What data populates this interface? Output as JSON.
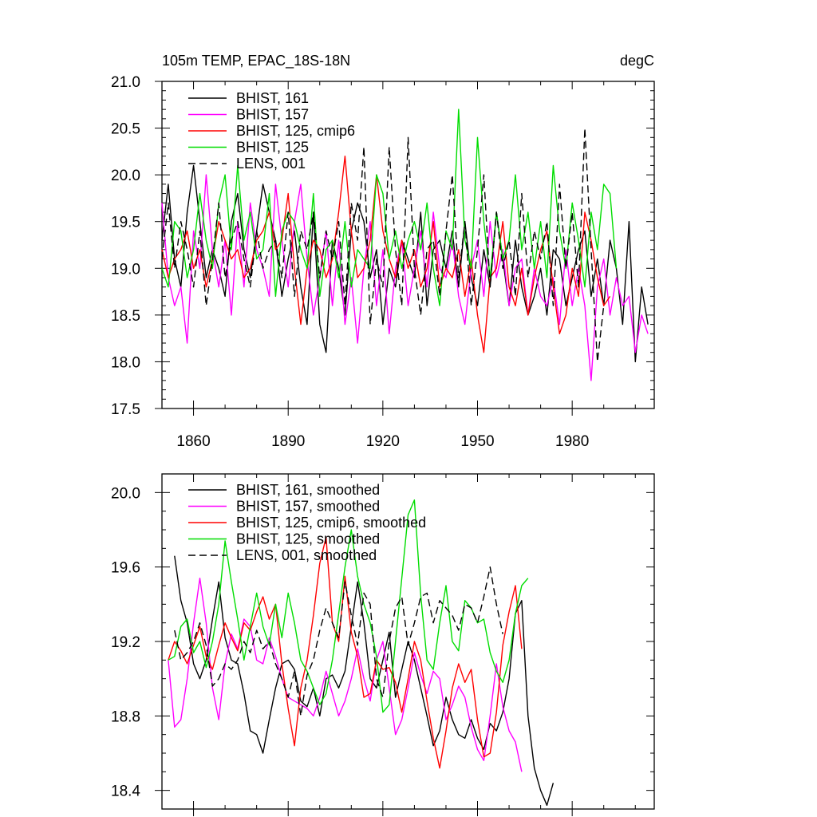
{
  "chart_data": [
    {
      "type": "line",
      "title": "105m TEMP, EPAC_18S-18N",
      "units": "degC",
      "xlabel": "",
      "ylabel": "",
      "xlim": [
        1850,
        2006
      ],
      "ylim": [
        17.5,
        21.0
      ],
      "xticks": [
        1860,
        1890,
        1920,
        1950,
        1980
      ],
      "xtick_labels": [
        "1860",
        "1890",
        "1920",
        "1950",
        "1980"
      ],
      "yticks": [
        17.5,
        18.0,
        18.5,
        19.0,
        19.5,
        20.0,
        20.5,
        21.0
      ],
      "ytick_labels": [
        "17.5",
        "18.0",
        "18.5",
        "19.0",
        "19.5",
        "20.0",
        "20.5",
        "21.0"
      ],
      "legend_position": "top-left",
      "series": [
        {
          "name": "BHIST, 161",
          "color": "#000000",
          "dash": "solid",
          "x_start": 1850,
          "x_step": 2,
          "values": [
            19.3,
            19.9,
            19.1,
            18.8,
            19.6,
            20.1,
            19.5,
            18.9,
            19.2,
            19.0,
            18.7,
            19.5,
            19.8,
            19.2,
            18.9,
            19.4,
            19.9,
            19.6,
            19.3,
            18.7,
            19.1,
            19.4,
            18.8,
            18.4,
            19.6,
            18.4,
            18.1,
            19.3,
            19.0,
            18.5,
            19.4,
            19.7,
            19.5,
            18.9,
            19.2,
            18.4,
            19.0,
            18.8,
            19.3,
            19.1,
            18.9,
            19.6,
            18.6,
            19.2,
            19.3,
            19.0,
            19.4,
            18.8,
            19.5,
            18.9,
            18.6,
            19.2,
            18.8,
            19.6,
            19.1,
            18.6,
            19.3,
            18.8,
            18.5,
            18.7,
            19.0,
            18.5,
            19.2,
            19.1,
            18.6,
            18.9,
            19.2,
            19.4,
            18.7,
            19.1,
            18.6,
            19.3,
            19.0,
            18.4,
            19.5,
            18.0,
            18.8,
            18.4
          ]
        },
        {
          "name": "BHIST, 157",
          "color": "#ff00ff",
          "dash": "solid",
          "x_start": 1850,
          "x_step": 2,
          "values": [
            19.7,
            18.9,
            18.6,
            18.8,
            18.2,
            19.4,
            19.0,
            20.0,
            19.2,
            18.8,
            19.3,
            18.5,
            19.5,
            18.8,
            19.7,
            19.2,
            19.0,
            18.7,
            19.9,
            19.3,
            18.8,
            19.5,
            19.9,
            19.1,
            18.5,
            18.9,
            19.4,
            18.6,
            19.3,
            18.4,
            18.9,
            18.2,
            19.0,
            19.5,
            18.6,
            19.2,
            18.3,
            19.0,
            19.3,
            18.6,
            19.0,
            19.4,
            18.8,
            19.6,
            19.0,
            18.9,
            19.3,
            18.7,
            18.4,
            19.0,
            19.3,
            18.7,
            19.5,
            18.9,
            19.2,
            18.6,
            19.0,
            19.1,
            18.5,
            19.0,
            18.7,
            18.6,
            18.9,
            18.4,
            19.2,
            18.6,
            19.0,
            18.6,
            17.8,
            18.8,
            19.1,
            18.5,
            18.9,
            18.6,
            18.7,
            18.1,
            18.5,
            18.3
          ]
        },
        {
          "name": "BHIST, 125, cmip6",
          "color": "#ff0000",
          "dash": "solid",
          "x_start": 1850,
          "x_step": 2,
          "values": [
            19.2,
            18.9,
            19.1,
            19.2,
            19.4,
            19.0,
            19.2,
            18.8,
            19.1,
            19.5,
            19.3,
            19.1,
            19.2,
            18.9,
            19.0,
            19.3,
            19.4,
            19.6,
            19.2,
            19.3,
            19.8,
            19.0,
            18.4,
            19.0,
            19.3,
            19.2,
            18.9,
            19.1,
            19.6,
            20.2,
            19.4,
            18.9,
            19.0,
            19.3,
            20.0,
            19.4,
            19.1,
            18.9,
            19.3,
            19.0,
            19.2,
            18.8,
            19.0,
            19.5,
            18.8,
            19.0,
            18.9,
            19.2,
            18.7,
            19.1,
            18.5,
            18.1,
            18.9,
            19.0,
            19.5,
            18.8,
            18.6,
            19.0,
            18.5,
            18.9,
            19.2,
            19.4,
            18.8,
            18.3,
            18.5,
            19.0,
            18.7,
            19.6,
            19.3,
            18.9,
            18.6,
            18.7
          ]
        },
        {
          "name": "BHIST, 125",
          "color": "#00dd00",
          "dash": "solid",
          "x_start": 1850,
          "x_step": 2,
          "values": [
            19.0,
            18.8,
            19.5,
            19.4,
            18.9,
            19.2,
            19.8,
            19.3,
            19.0,
            19.7,
            20.0,
            19.2,
            20.1,
            19.3,
            19.6,
            19.1,
            19.2,
            19.8,
            18.7,
            19.4,
            19.6,
            19.5,
            19.2,
            19.0,
            19.8,
            18.7,
            19.2,
            19.3,
            18.9,
            19.5,
            18.8,
            19.2,
            19.1,
            19.0,
            20.0,
            19.8,
            19.1,
            19.4,
            19.0,
            19.3,
            19.5,
            19.2,
            19.7,
            19.0,
            18.6,
            19.4,
            19.2,
            20.7,
            19.3,
            19.0,
            20.4,
            19.5,
            18.9,
            19.6,
            19.1,
            19.3,
            20.0,
            19.2,
            19.6,
            19.0,
            19.5,
            18.9,
            20.1,
            19.4,
            19.0,
            19.7,
            19.3,
            18.8,
            19.6,
            19.2,
            19.9,
            19.8,
            19.0
          ]
        },
        {
          "name": "LENS, 001",
          "color": "#000000",
          "dash": "dashed",
          "x_start": 1850,
          "x_step": 2,
          "values": [
            19.1,
            19.7,
            19.0,
            19.5,
            19.2,
            18.8,
            19.4,
            18.6,
            19.1,
            19.7,
            18.9,
            19.3,
            19.5,
            19.1,
            18.8,
            19.4,
            19.0,
            19.2,
            19.3,
            18.9,
            19.6,
            18.7,
            19.4,
            19.2,
            19.6,
            18.9,
            19.4,
            19.1,
            19.5,
            18.6,
            19.7,
            19.3,
            20.3,
            18.4,
            19.1,
            18.8,
            20.3,
            19.2,
            18.6,
            20.4,
            19.0,
            18.5,
            19.2,
            19.3,
            18.7,
            19.4,
            20.0,
            18.9,
            19.5,
            18.6,
            19.2,
            20.0,
            18.8,
            19.6,
            19.0,
            19.3,
            18.7,
            19.8,
            18.9,
            19.4,
            19.1,
            19.5,
            18.6,
            19.9,
            19.0,
            19.6,
            18.8,
            20.5,
            19.2,
            18.0,
            18.6
          ]
        }
      ]
    },
    {
      "type": "line",
      "title": "",
      "xlabel": "",
      "ylabel": "",
      "xlim": [
        1850,
        2006
      ],
      "ylim": [
        18.3,
        20.1
      ],
      "yticks": [
        18.4,
        18.8,
        19.2,
        19.6,
        20.0
      ],
      "ytick_labels": [
        "18.4",
        "18.8",
        "19.2",
        "19.6",
        "20.0"
      ],
      "legend_position": "top-left",
      "series": [
        {
          "name": "BHIST, 161, smoothed",
          "color": "#000000",
          "dash": "solid",
          "x_start": 1854,
          "x_step": 2,
          "values": [
            19.66,
            19.42,
            19.3,
            19.08,
            19.0,
            19.1,
            19.32,
            19.52,
            19.22,
            19.1,
            19.08,
            18.92,
            18.72,
            18.7,
            18.6,
            18.78,
            18.95,
            19.08,
            19.1,
            19.05,
            18.88,
            18.85,
            18.95,
            18.8,
            19.0,
            19.02,
            18.95,
            19.04,
            19.28,
            19.52,
            19.3,
            19.0,
            18.95,
            19.1,
            19.25,
            18.9,
            19.05,
            19.2,
            19.1,
            18.95,
            18.8,
            18.64,
            18.72,
            18.9,
            18.78,
            18.7,
            18.68,
            18.78,
            18.68,
            18.62,
            18.76,
            18.72,
            18.82,
            19.0,
            19.35,
            19.42,
            18.8,
            18.52,
            18.4,
            18.32,
            18.44
          ]
        },
        {
          "name": "BHIST, 157, smoothed",
          "color": "#ff00ff",
          "dash": "solid",
          "x_start": 1852,
          "x_step": 2,
          "values": [
            19.1,
            18.74,
            18.78,
            19.0,
            19.3,
            19.54,
            19.3,
            18.95,
            18.78,
            19.08,
            19.24,
            19.16,
            19.32,
            19.28,
            19.1,
            19.08,
            19.22,
            19.12,
            19.0,
            18.9,
            18.88,
            18.86,
            18.84,
            18.8,
            18.9,
            19.04,
            18.92,
            18.8,
            18.88,
            19.0,
            19.16,
            19.0,
            18.88,
            19.1,
            19.2,
            18.95,
            18.7,
            18.78,
            18.95,
            19.14,
            19.02,
            18.92,
            19.04,
            19.0,
            18.78,
            18.86,
            18.96,
            18.9,
            18.74,
            18.62,
            18.56,
            18.8,
            19.08,
            18.85,
            18.72,
            18.66,
            18.5
          ]
        },
        {
          "name": "BHIST, 125, cmip6, smoothed",
          "color": "#ff0000",
          "dash": "solid",
          "x_start": 1852,
          "x_step": 2,
          "values": [
            19.1,
            19.2,
            19.15,
            19.08,
            19.18,
            19.28,
            19.12,
            19.05,
            19.18,
            19.3,
            19.22,
            19.15,
            19.3,
            19.26,
            19.36,
            19.44,
            19.32,
            19.4,
            19.08,
            18.84,
            18.64,
            18.95,
            19.1,
            19.34,
            19.62,
            19.76,
            19.3,
            19.2,
            19.55,
            19.25,
            19.12,
            18.9,
            18.92,
            19.1,
            19.05,
            19.06,
            18.98,
            18.82,
            19.0,
            19.2,
            19.1,
            18.88,
            18.68,
            18.52,
            18.72,
            18.95,
            19.08,
            18.98,
            19.05,
            18.78,
            18.58,
            18.6,
            18.82,
            19.18,
            19.36,
            19.5,
            19.16
          ]
        },
        {
          "name": "BHIST, 125, smoothed",
          "color": "#00dd00",
          "dash": "solid",
          "x_start": 1852,
          "x_step": 2,
          "values": [
            19.1,
            19.12,
            19.28,
            19.32,
            19.14,
            19.2,
            19.06,
            19.2,
            19.4,
            19.74,
            19.52,
            19.32,
            19.1,
            19.28,
            19.46,
            19.28,
            19.18,
            19.4,
            19.22,
            19.46,
            19.3,
            19.1,
            19.04,
            18.95,
            18.86,
            18.92,
            19.1,
            19.35,
            19.6,
            19.8,
            19.55,
            19.4,
            19.3,
            19.12,
            18.82,
            18.86,
            19.2,
            19.54,
            19.88,
            19.96,
            19.45,
            19.1,
            19.05,
            19.3,
            19.5,
            19.2,
            19.15,
            19.42,
            19.38,
            19.3,
            19.32,
            19.14,
            19.04,
            18.98,
            19.1,
            19.35,
            19.5,
            19.54
          ]
        },
        {
          "name": "LENS, 001, smoothed",
          "color": "#000000",
          "dash": "dashed",
          "x_start": 1854,
          "x_step": 2,
          "values": [
            19.26,
            19.1,
            19.14,
            19.2,
            19.3,
            19.18,
            18.96,
            19.0,
            19.08,
            19.05,
            19.1,
            19.2,
            19.14,
            19.26,
            19.16,
            19.2,
            19.08,
            19.0,
            18.9,
            19.04,
            18.8,
            19.02,
            19.1,
            19.26,
            19.38,
            19.3,
            19.22,
            19.52,
            19.34,
            19.18,
            19.46,
            19.4,
            19.0,
            18.9,
            19.2,
            19.38,
            19.44,
            19.18,
            19.3,
            19.44,
            19.46,
            19.3,
            19.42,
            19.38,
            19.34,
            19.26,
            19.4,
            19.38,
            19.3,
            19.44,
            19.6,
            19.4,
            19.24
          ]
        }
      ]
    }
  ]
}
